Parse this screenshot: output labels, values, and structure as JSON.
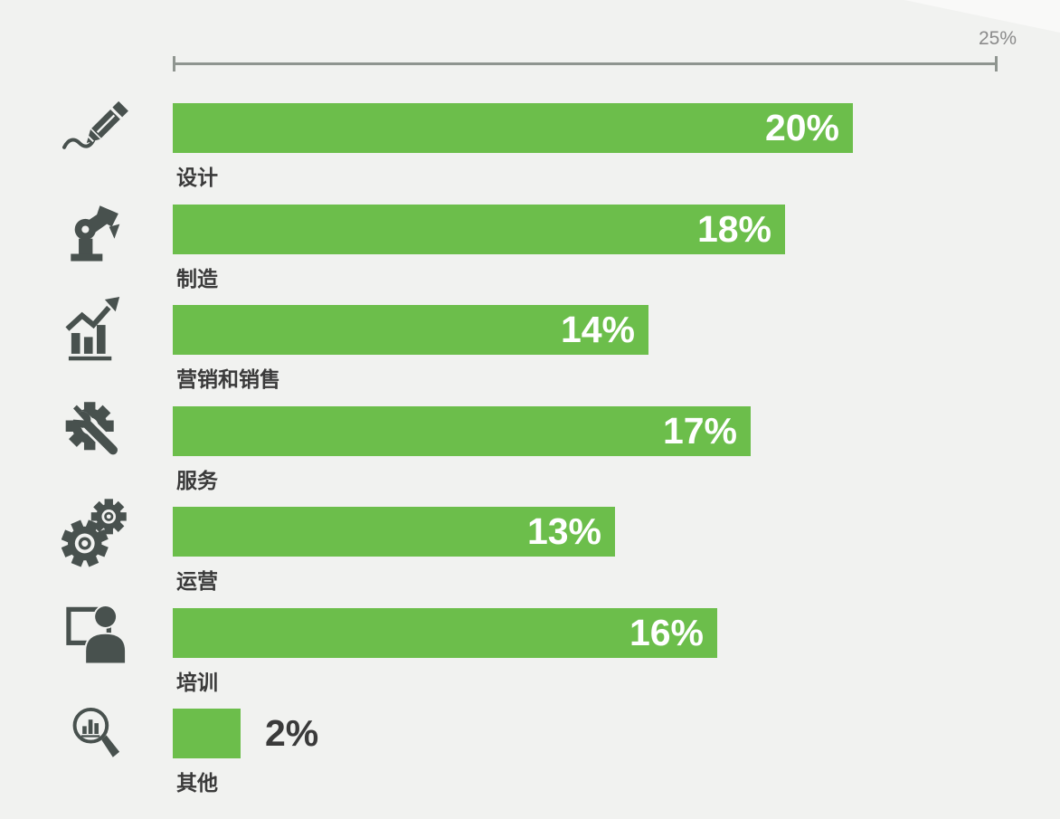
{
  "theme": {
    "bg": "#f1f2f0",
    "wedge": "#f9f9f8",
    "green": "#6cbe4b",
    "icon": "#48514e",
    "text": "#3a3a3a",
    "axis": "#8f9590",
    "axis_label": "#8b8b8b",
    "value_inside": "#ffffff"
  },
  "axis": {
    "max_label": "25%"
  },
  "chart_data": {
    "type": "bar",
    "orientation": "horizontal",
    "title": "",
    "xlabel": "",
    "ylabel": "",
    "value_unit": "%",
    "axis_max": 25,
    "axis_tick_labels": [
      "25%"
    ],
    "grid": false,
    "legend": false,
    "categories": [
      "设计",
      "制造",
      "营销和销售",
      "服务",
      "运营",
      "培训",
      "其他"
    ],
    "values": [
      20,
      18,
      14,
      17,
      13,
      16,
      2
    ],
    "rows": [
      {
        "label": "设计",
        "value": 20,
        "value_label": "20%",
        "icon": "pencil-sketch-icon",
        "value_label_position": "inside"
      },
      {
        "label": "制造",
        "value": 18,
        "value_label": "18%",
        "icon": "robot-arm-icon",
        "value_label_position": "inside"
      },
      {
        "label": "营销和销售",
        "value": 14,
        "value_label": "14%",
        "icon": "growth-chart-icon",
        "value_label_position": "inside"
      },
      {
        "label": "服务",
        "value": 17,
        "value_label": "17%",
        "icon": "gear-wrench-icon",
        "value_label_position": "inside"
      },
      {
        "label": "运营",
        "value": 13,
        "value_label": "13%",
        "icon": "gears-icon",
        "value_label_position": "inside"
      },
      {
        "label": "培训",
        "value": 16,
        "value_label": "16%",
        "icon": "person-computer-icon",
        "value_label_position": "inside"
      },
      {
        "label": "其他",
        "value": 2,
        "value_label": "2%",
        "icon": "magnifier-chart-icon",
        "value_label_position": "outside"
      }
    ]
  }
}
